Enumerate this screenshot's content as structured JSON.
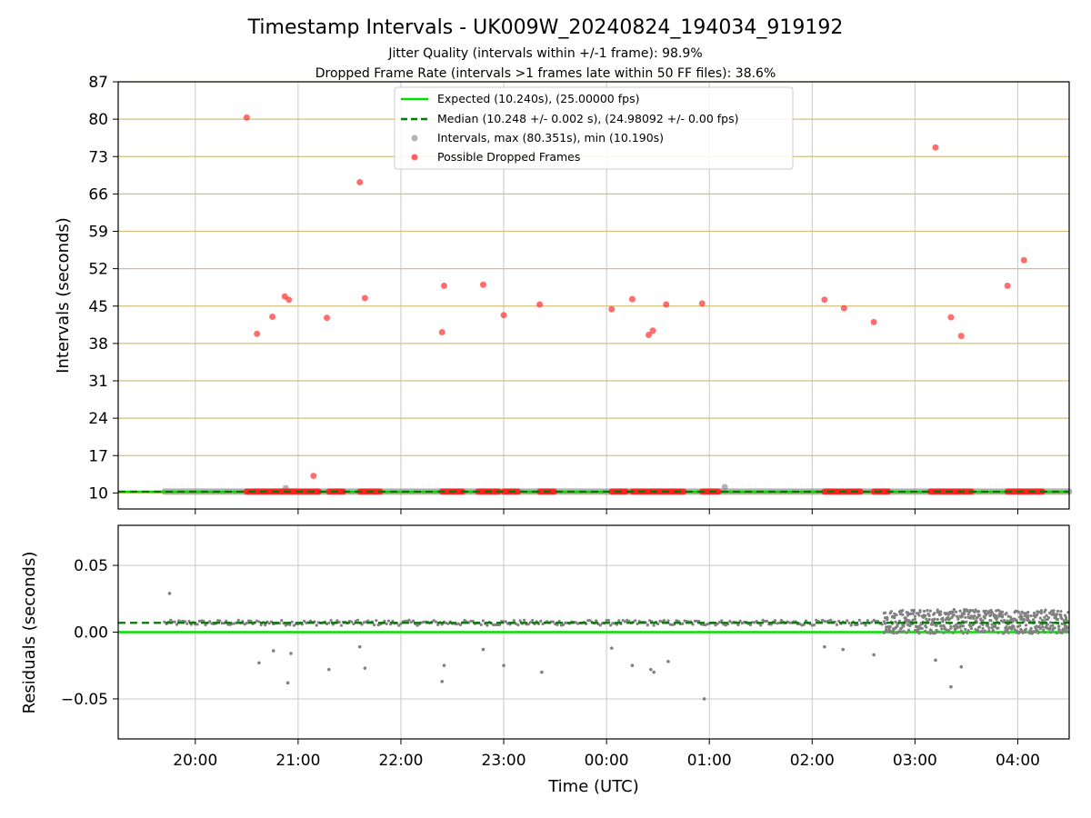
{
  "chart_data": {
    "type": "scatter",
    "title": "Timestamp Intervals - UK009W_20240824_194034_919192",
    "subtitle_lines": [
      "Jitter Quality (intervals within +/-1 frame): 98.9%",
      "Dropped Frame Rate (intervals >1 frames late within 50 FF files): 38.6%"
    ],
    "colors": {
      "expected": "#00e000",
      "median": "#007a00",
      "intervals": "#808080",
      "dropped": "#ff2020",
      "hgrid_top": "#d4c07a",
      "grid": "#c8c8c8"
    },
    "x_axis": {
      "label": "Time (UTC)",
      "ticks": [
        "20:00",
        "21:00",
        "22:00",
        "23:00",
        "00:00",
        "01:00",
        "02:00",
        "03:00",
        "04:00"
      ],
      "tick_hours": [
        20,
        21,
        22,
        23,
        24,
        25,
        26,
        27,
        28
      ],
      "xlim_hours": [
        19.25,
        28.5
      ]
    },
    "top_panel": {
      "ylabel": "Intervals (seconds)",
      "ylim": [
        7,
        87
      ],
      "yticks": [
        10,
        17,
        24,
        31,
        38,
        45,
        52,
        59,
        66,
        73,
        80,
        87
      ],
      "expected_value": 10.24,
      "median_value": 10.248,
      "legend": [
        {
          "key": "expected",
          "label": "Expected (10.240s), (25.00000 fps)",
          "style": "solid-line"
        },
        {
          "key": "median",
          "label": "Median (10.248 +/- 0.002 s), (24.98092 +/- 0.00 fps)",
          "style": "dashed-line"
        },
        {
          "key": "intervals",
          "label": "Intervals, max (80.351s), min (10.190s)",
          "style": "dot"
        },
        {
          "key": "dropped",
          "label": "Possible Dropped Frames",
          "style": "dot"
        }
      ],
      "dropped_points": [
        [
          20.5,
          80.3
        ],
        [
          20.6,
          39.8
        ],
        [
          20.75,
          43.0
        ],
        [
          20.87,
          46.8
        ],
        [
          20.91,
          46.2
        ],
        [
          21.15,
          13.2
        ],
        [
          21.28,
          42.8
        ],
        [
          21.6,
          68.2
        ],
        [
          21.65,
          46.5
        ],
        [
          22.4,
          40.1
        ],
        [
          22.42,
          48.8
        ],
        [
          22.8,
          49.0
        ],
        [
          23.0,
          43.3
        ],
        [
          23.35,
          45.3
        ],
        [
          24.05,
          44.4
        ],
        [
          24.25,
          46.3
        ],
        [
          24.41,
          39.6
        ],
        [
          24.45,
          40.4
        ],
        [
          24.58,
          45.3
        ],
        [
          24.93,
          45.5
        ],
        [
          26.12,
          46.2
        ],
        [
          26.31,
          44.6
        ],
        [
          26.6,
          42.0
        ],
        [
          27.2,
          74.7
        ],
        [
          27.35,
          42.9
        ],
        [
          27.45,
          39.4
        ],
        [
          27.9,
          48.8
        ],
        [
          28.06,
          53.6
        ]
      ],
      "dropped_clusters_hours": [
        [
          20.5,
          21.2
        ],
        [
          21.3,
          21.45
        ],
        [
          21.6,
          21.8
        ],
        [
          22.4,
          22.6
        ],
        [
          22.75,
          22.95
        ],
        [
          23.0,
          23.15
        ],
        [
          23.35,
          23.5
        ],
        [
          24.05,
          24.2
        ],
        [
          24.25,
          24.75
        ],
        [
          24.93,
          25.1
        ],
        [
          26.12,
          26.3
        ],
        [
          26.33,
          26.48
        ],
        [
          26.6,
          26.75
        ],
        [
          27.15,
          27.55
        ],
        [
          27.9,
          28.25
        ]
      ],
      "interval_line_hours": [
        19.7,
        28.5
      ],
      "extra_interval_points": [
        [
          20.88,
          10.9
        ],
        [
          25.15,
          11.1
        ]
      ]
    },
    "bottom_panel": {
      "ylabel": "Residuals (seconds)",
      "ylim": [
        -0.08,
        0.08
      ],
      "yticks": [
        0.05,
        0.0,
        -0.05
      ],
      "ytick_labels": [
        "0.05",
        "0.00",
        "−0.05"
      ],
      "median_residual": 0.007,
      "outlier_points": [
        [
          19.75,
          0.029
        ],
        [
          20.62,
          -0.023
        ],
        [
          20.76,
          -0.014
        ],
        [
          20.9,
          -0.038
        ],
        [
          20.93,
          -0.016
        ],
        [
          21.3,
          -0.028
        ],
        [
          21.6,
          -0.011
        ],
        [
          21.65,
          -0.027
        ],
        [
          22.4,
          -0.037
        ],
        [
          22.42,
          -0.025
        ],
        [
          22.8,
          -0.013
        ],
        [
          23.0,
          -0.025
        ],
        [
          23.37,
          -0.03
        ],
        [
          24.05,
          -0.012
        ],
        [
          24.25,
          -0.025
        ],
        [
          24.43,
          -0.028
        ],
        [
          24.46,
          -0.03
        ],
        [
          24.6,
          -0.022
        ],
        [
          24.95,
          -0.05
        ],
        [
          26.12,
          -0.011
        ],
        [
          26.3,
          -0.013
        ],
        [
          26.6,
          -0.017
        ],
        [
          27.2,
          -0.021
        ],
        [
          27.35,
          -0.041
        ],
        [
          27.45,
          -0.026
        ]
      ],
      "dense_band": {
        "hours": [
          26.7,
          28.5
        ],
        "min": -0.001,
        "max": 0.017
      }
    }
  }
}
